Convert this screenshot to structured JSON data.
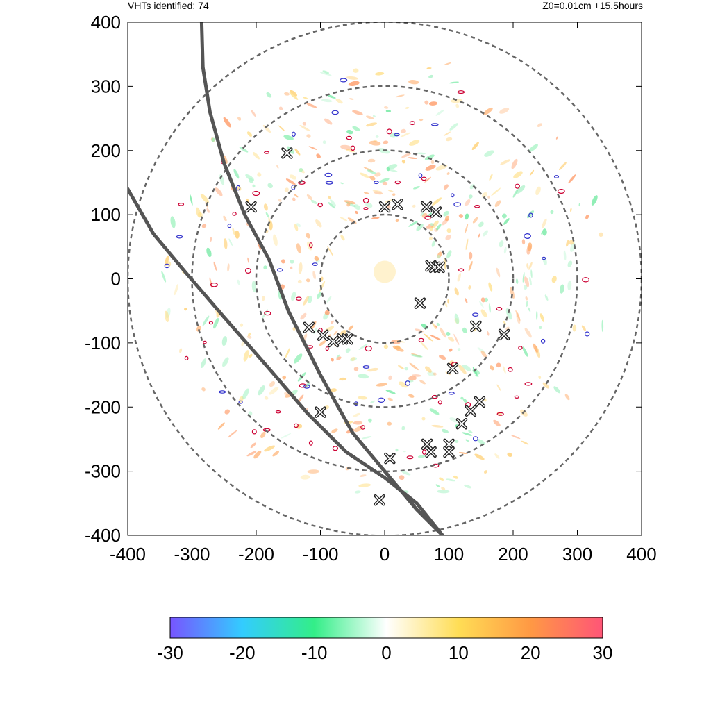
{
  "header": {
    "left_text": "VHTs identified: 74",
    "right_text": "Z0=0.01cm  +15.5hours"
  },
  "colors": {
    "ring": "#666666",
    "track": "#555555",
    "vht_marker": "#222222",
    "contour_positive": "#cc0033",
    "contour_negative": "#3333cc"
  },
  "chart_data": {
    "type": "scatter",
    "title": "",
    "xlabel": "",
    "ylabel": "",
    "xlim": [
      -400,
      400
    ],
    "ylim": [
      -400,
      400
    ],
    "x_ticks": [
      -400,
      -300,
      -200,
      -100,
      0,
      100,
      200,
      300,
      400
    ],
    "y_ticks": [
      -400,
      -300,
      -200,
      -100,
      0,
      100,
      200,
      300,
      400
    ],
    "x_tick_labels": [
      "-400",
      "-300",
      "-200",
      "-100",
      "0",
      "100",
      "200",
      "300",
      "400"
    ],
    "y_tick_labels": [
      "-400",
      "-300",
      "-200",
      "-100",
      "0",
      "100",
      "200",
      "300",
      "400"
    ],
    "grid": false,
    "range_rings": [
      100,
      200,
      300,
      400
    ],
    "tracks": [
      {
        "points": [
          [
            -285,
            400
          ],
          [
            -283,
            330
          ],
          [
            -272,
            260
          ],
          [
            -250,
            180
          ],
          [
            -218,
            100
          ],
          [
            -180,
            30
          ],
          [
            -150,
            -50
          ],
          [
            -100,
            -150
          ],
          [
            -50,
            -240
          ],
          [
            0,
            -300
          ],
          [
            50,
            -360
          ],
          [
            90,
            -400
          ]
        ]
      },
      {
        "points": [
          [
            -400,
            140
          ],
          [
            -360,
            70
          ],
          [
            -310,
            10
          ],
          [
            -250,
            -60
          ],
          [
            -180,
            -140
          ],
          [
            -120,
            -210
          ],
          [
            -60,
            -270
          ],
          [
            0,
            -310
          ],
          [
            50,
            -350
          ],
          [
            90,
            -400
          ]
        ]
      }
    ],
    "vht_markers": [
      {
        "x": -152,
        "y": 196
      },
      {
        "x": -208,
        "y": 112
      },
      {
        "x": 0,
        "y": 112
      },
      {
        "x": 20,
        "y": 116
      },
      {
        "x": 65,
        "y": 112
      },
      {
        "x": 80,
        "y": 104
      },
      {
        "x": 72,
        "y": 20
      },
      {
        "x": 78,
        "y": 18
      },
      {
        "x": 85,
        "y": 18
      },
      {
        "x": 55,
        "y": -38
      },
      {
        "x": -118,
        "y": -76
      },
      {
        "x": -96,
        "y": -88
      },
      {
        "x": -80,
        "y": -98
      },
      {
        "x": -66,
        "y": -94
      },
      {
        "x": -58,
        "y": -94
      },
      {
        "x": 142,
        "y": -74
      },
      {
        "x": 186,
        "y": -87
      },
      {
        "x": 106,
        "y": -140
      },
      {
        "x": 148,
        "y": -192
      },
      {
        "x": 134,
        "y": -206
      },
      {
        "x": -100,
        "y": -208
      },
      {
        "x": 120,
        "y": -226
      },
      {
        "x": 66,
        "y": -258
      },
      {
        "x": 72,
        "y": -270
      },
      {
        "x": 100,
        "y": -258
      },
      {
        "x": 100,
        "y": -270
      },
      {
        "x": 8,
        "y": -280
      },
      {
        "x": -8,
        "y": -345
      }
    ],
    "colorbar": {
      "min": -30,
      "max": 30,
      "ticks": [
        -30,
        -20,
        -10,
        0,
        10,
        20,
        30
      ],
      "tick_labels": [
        "-30",
        "-20",
        "-10",
        "0",
        "10",
        "20",
        "30"
      ],
      "stops": [
        "#7755ff",
        "#33ccff",
        "#33ee88",
        "#ffffff",
        "#ffdd55",
        "#ff9944",
        "#ff5577"
      ]
    }
  }
}
